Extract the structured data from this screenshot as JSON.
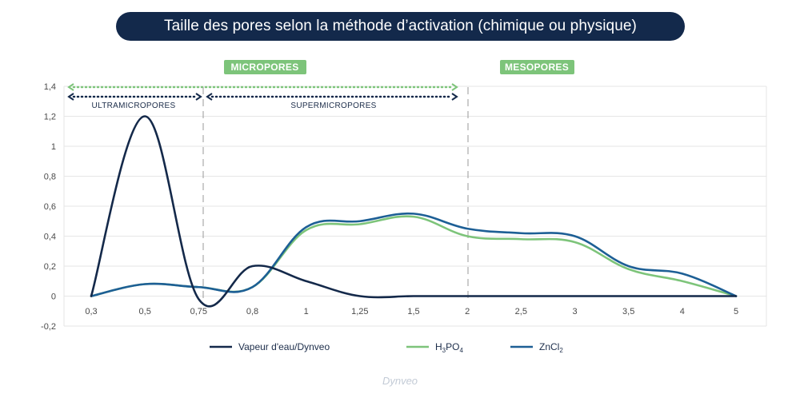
{
  "title": "Taille des pores selon la méthode d’activation (chimique ou physique)",
  "zones": {
    "micropores": "MICROPORES",
    "mesopores": "MESOPORES",
    "ultramicropores": "ULTRAMICROPORES",
    "supermicropores": "SUPERMICROPORES"
  },
  "brand": "Dynveo",
  "colors": {
    "title_bg": "#13294b",
    "zone_green": "#7dc47a",
    "dark_navy": "#14294a",
    "green": "#7dc47a",
    "blue": "#1d5f95"
  },
  "chart_data": {
    "type": "line",
    "categories": [
      "0,3",
      "0,5",
      "0,75",
      "0,8",
      "1",
      "1,25",
      "1,5",
      "2",
      "2,5",
      "3",
      "3,5",
      "4",
      "5"
    ],
    "y_ticks": [
      "1,4",
      "1,2",
      "1",
      "0,8",
      "0,6",
      "0,4",
      "0,2",
      "0",
      "-0,2"
    ],
    "ylim": [
      -0.2,
      1.4
    ],
    "grid": true,
    "legend_position": "bottom",
    "series": [
      {
        "name": "Vapeur d'eau/Dynveo",
        "legend_main": "Vapeur d'eau/Dynveo",
        "legend_sub": "",
        "legend_tail": "",
        "color": "#14294a",
        "values": [
          0,
          1.2,
          -0.02,
          0.2,
          0.1,
          0,
          0,
          0,
          0,
          0,
          0,
          0,
          0
        ]
      },
      {
        "name": "H3PO4",
        "legend_main": "H",
        "legend_sub": "3",
        "legend_tail": "PO",
        "legend_sub2": "4",
        "color": "#7dc47a",
        "values": [
          0,
          0.08,
          0.06,
          0.06,
          0.44,
          0.48,
          0.53,
          0.4,
          0.38,
          0.36,
          0.18,
          0.1,
          0
        ]
      },
      {
        "name": "ZnCl2",
        "legend_main": "ZnCl",
        "legend_sub": "2",
        "legend_tail": "",
        "color": "#1d5f95",
        "values": [
          0,
          0.08,
          0.06,
          0.06,
          0.46,
          0.5,
          0.55,
          0.45,
          0.42,
          0.4,
          0.2,
          0.15,
          0
        ]
      }
    ]
  }
}
